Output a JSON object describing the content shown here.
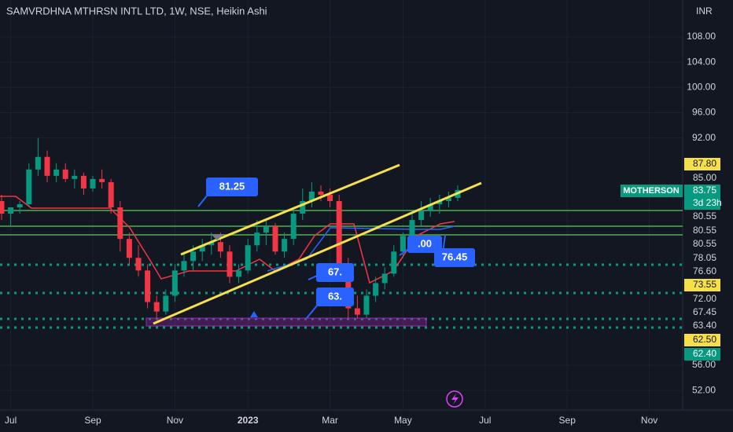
{
  "chart_data": {
    "type": "candlestick",
    "title": "SAMVRDHNA MTHRSN INTL LTD, 1W, NSE, Heikin Ashi",
    "currency": "INR",
    "up_color": "#089981",
    "down_color": "#f23645",
    "ylim": [
      48.9,
      113.85
    ],
    "yticks": [
      {
        "value": 108,
        "label": "108.00"
      },
      {
        "value": 104,
        "label": "104.00"
      },
      {
        "value": 100,
        "label": "100.00"
      },
      {
        "value": 96,
        "label": "96.00"
      },
      {
        "value": 92,
        "label": "92.00"
      },
      {
        "value": 56,
        "label": "56.00"
      },
      {
        "value": 52,
        "label": "52.00"
      }
    ],
    "categories": [
      null,
      "Jul",
      null,
      null,
      null,
      null,
      null,
      null,
      null,
      null,
      "Sep",
      null,
      null,
      null,
      null,
      null,
      null,
      null,
      null,
      "Nov",
      null,
      null,
      null,
      null,
      null,
      null,
      null,
      "2023",
      null,
      null,
      null,
      null,
      null,
      null,
      null,
      null,
      "Mar",
      null,
      null,
      null,
      null,
      null,
      null,
      null,
      "May",
      null,
      null,
      null,
      null,
      null,
      null,
      null,
      null,
      "Jul",
      null,
      null,
      null,
      null,
      null,
      null,
      null,
      null,
      "Sep",
      null,
      null,
      null,
      null,
      null,
      null,
      null,
      null,
      "Nov",
      null,
      null
    ],
    "series": [
      {
        "name": "MOTHERSON",
        "open": [
          82,
          80,
          81,
          81.5,
          87,
          89,
          86,
          87,
          85.5,
          86,
          84,
          85.5,
          85,
          81,
          76,
          73,
          71,
          66,
          64.5,
          67,
          71,
          72.5,
          74,
          75,
          75.5,
          74,
          70,
          71,
          75,
          77,
          78,
          74,
          76,
          80,
          82,
          83.5,
          83,
          82,
          72,
          65,
          64,
          67,
          69,
          70.5,
          74,
          76.5,
          79,
          80.5,
          81.5,
          82,
          82.5,
          null,
          null,
          null,
          null,
          null,
          null,
          null,
          null,
          null,
          null,
          null,
          null,
          null,
          null,
          null,
          null,
          null,
          null,
          null,
          null,
          null,
          null,
          null
        ],
        "high": [
          83,
          81,
          82,
          88,
          92,
          90,
          88,
          88,
          87,
          86.5,
          86,
          87,
          85.5,
          82,
          77,
          75,
          72,
          67,
          68,
          72,
          74,
          75,
          76,
          77,
          77,
          75,
          72,
          76,
          79,
          79,
          78.5,
          77,
          81,
          84,
          85,
          84.5,
          84,
          83,
          73,
          67,
          68,
          70,
          71.5,
          75,
          77,
          80,
          82,
          82.5,
          83,
          83.5,
          84.5,
          null,
          null,
          null,
          null,
          null,
          null,
          null,
          null,
          null,
          null,
          null,
          null,
          null,
          null,
          null,
          null,
          null,
          null,
          null,
          null,
          null,
          null,
          null
        ],
        "low": [
          79,
          78,
          80,
          81,
          86,
          85,
          85,
          85,
          84,
          83,
          83.5,
          84,
          80,
          74,
          72,
          70,
          65,
          63.4,
          64,
          66,
          70,
          71,
          72.5,
          73.5,
          73,
          69,
          69,
          70.5,
          74,
          75,
          73.5,
          73,
          75,
          79,
          81,
          82,
          81,
          71,
          63.5,
          63.4,
          63.5,
          66,
          68,
          70,
          73,
          75.5,
          78,
          79.5,
          80,
          81,
          82,
          null,
          null,
          null,
          null,
          null,
          null,
          null,
          null,
          null,
          null,
          null,
          null,
          null,
          null,
          null,
          null,
          null,
          null,
          null,
          null,
          null,
          null,
          null
        ],
        "close": [
          80,
          81,
          81.5,
          87,
          89,
          86,
          87,
          85.5,
          86,
          84,
          85.5,
          85,
          81,
          76,
          73,
          71,
          66,
          64.5,
          67,
          71,
          72.5,
          74,
          75,
          75.5,
          74,
          70,
          71,
          75,
          77,
          78,
          74,
          76,
          80,
          82,
          83.5,
          83,
          82,
          72,
          65,
          64,
          67,
          69,
          70.5,
          74,
          76.5,
          79,
          80.5,
          81.5,
          82,
          82.5,
          83.75,
          null,
          null,
          null,
          null,
          null,
          null,
          null,
          null,
          null,
          null,
          null,
          null,
          null,
          null,
          null,
          null,
          null,
          null,
          null,
          null,
          null,
          null,
          null
        ]
      }
    ],
    "price_labels": [
      {
        "label": "87.80",
        "style": "yellow"
      },
      {
        "label": "85.00",
        "style": "plain"
      },
      {
        "label": "83.75",
        "style": "green"
      },
      {
        "label": "3d 23h",
        "style": "green"
      },
      {
        "label": "80.55",
        "style": "plain"
      },
      {
        "label": "80.55",
        "style": "plain"
      },
      {
        "label": "80.55",
        "style": "plain"
      },
      {
        "label": "78.05",
        "style": "plain"
      },
      {
        "label": "76.60",
        "style": "plain"
      },
      {
        "label": "73.55",
        "style": "yellow"
      },
      {
        "label": "72.00",
        "style": "plain"
      },
      {
        "label": "67.45",
        "style": "plain"
      },
      {
        "label": "63.40",
        "style": "plain"
      },
      {
        "label": "62.50",
        "style": "yellow"
      },
      {
        "label": "62.40",
        "style": "green"
      }
    ],
    "callouts": [
      "81.25",
      "67.",
      "63.",
      "76.45",
      ".00"
    ]
  }
}
